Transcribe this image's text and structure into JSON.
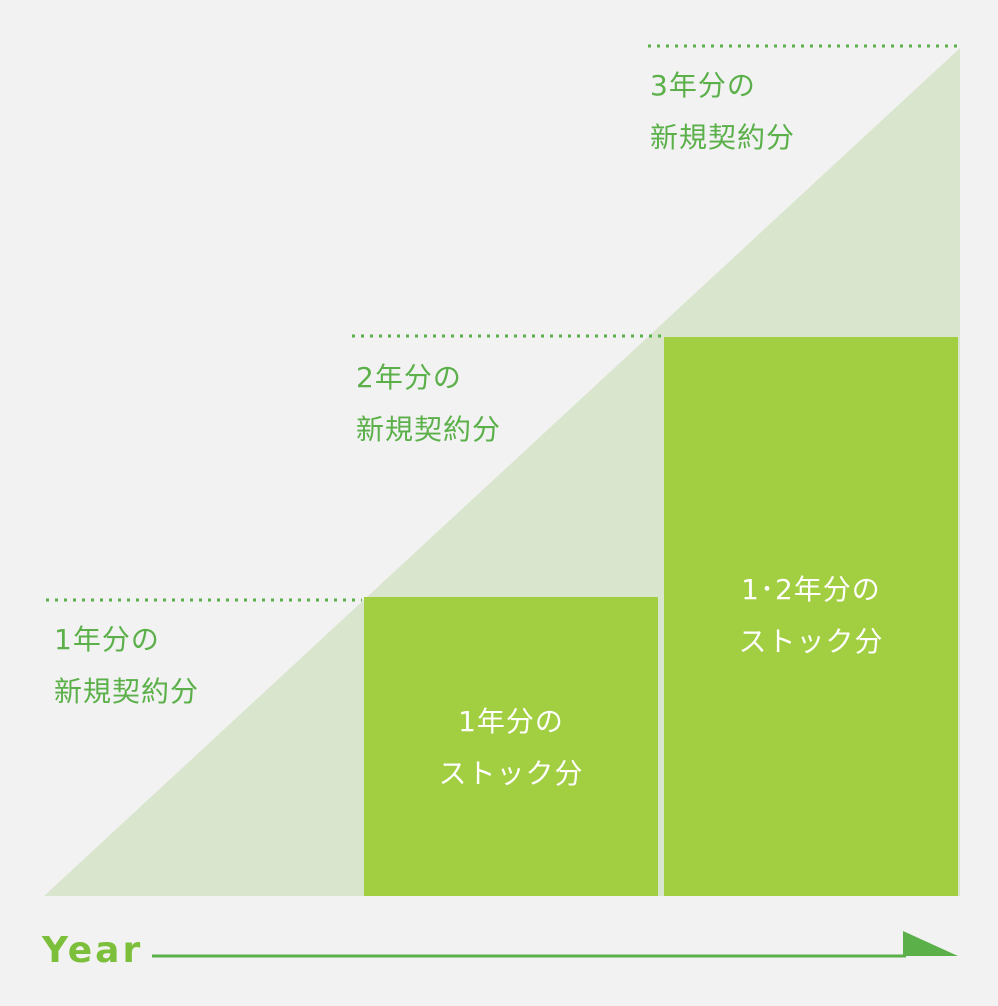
{
  "colors": {
    "background": "#f2f2f2",
    "triangle": "#d9e6cd",
    "stock_block": "#a2ce42",
    "dotted_line": "#5bb04a",
    "text_green": "#5bb04a",
    "year_text": "#7cbf3a",
    "arrow": "#5bb04a",
    "stock_text": "#ffffff"
  },
  "new_contracts": [
    {
      "line1": "1年分の",
      "line2": "新規契約分"
    },
    {
      "line1": "2年分の",
      "line2": "新規契約分"
    },
    {
      "line1": "3年分の",
      "line2": "新規契約分"
    }
  ],
  "stocks": [
    {
      "line1": "1年分の",
      "line2": "ストック分"
    },
    {
      "line1": "1･2年分の",
      "line2": "ストック分"
    }
  ],
  "axis": {
    "label": "Year",
    "arrow_icon": "arrow-right-icon"
  }
}
